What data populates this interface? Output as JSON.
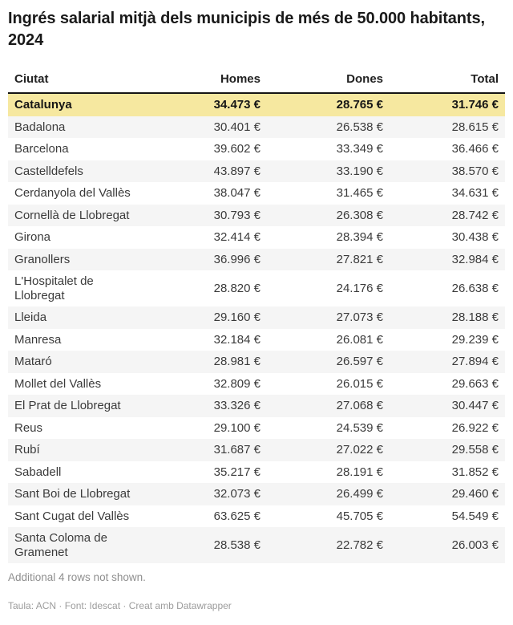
{
  "header": {
    "title": "Ingrés salarial mitjà dels municipis de més de 50.000 habitants, 2024"
  },
  "table": {
    "columns": {
      "ciutat": "Ciutat",
      "homes": "Homes",
      "dones": "Dones",
      "total": "Total"
    },
    "rows": [
      {
        "ciutat": "Catalunya",
        "homes": "34.473 €",
        "dones": "28.765 €",
        "total": "31.746 €",
        "highlight": true
      },
      {
        "ciutat": "Badalona",
        "homes": "30.401 €",
        "dones": "26.538 €",
        "total": "28.615 €"
      },
      {
        "ciutat": "Barcelona",
        "homes": "39.602 €",
        "dones": "33.349 €",
        "total": "36.466 €"
      },
      {
        "ciutat": "Castelldefels",
        "homes": "43.897 €",
        "dones": "33.190 €",
        "total": "38.570 €"
      },
      {
        "ciutat": "Cerdanyola del Vallès",
        "homes": "38.047 €",
        "dones": "31.465 €",
        "total": "34.631 €"
      },
      {
        "ciutat": "Cornellà de Llobregat",
        "homes": "30.793 €",
        "dones": "26.308 €",
        "total": "28.742 €"
      },
      {
        "ciutat": "Girona",
        "homes": "32.414 €",
        "dones": "28.394 €",
        "total": "30.438 €"
      },
      {
        "ciutat": "Granollers",
        "homes": "36.996 €",
        "dones": "27.821 €",
        "total": "32.984 €"
      },
      {
        "ciutat": "L'Hospitalet de Llobregat",
        "homes": "28.820 €",
        "dones": "24.176 €",
        "total": "26.638 €"
      },
      {
        "ciutat": "Lleida",
        "homes": "29.160 €",
        "dones": "27.073 €",
        "total": "28.188 €"
      },
      {
        "ciutat": "Manresa",
        "homes": "32.184 €",
        "dones": "26.081 €",
        "total": "29.239 €"
      },
      {
        "ciutat": "Mataró",
        "homes": "28.981 €",
        "dones": "26.597 €",
        "total": "27.894 €"
      },
      {
        "ciutat": "Mollet del Vallès",
        "homes": "32.809 €",
        "dones": "26.015 €",
        "total": "29.663 €"
      },
      {
        "ciutat": "El Prat de Llobregat",
        "homes": "33.326 €",
        "dones": "27.068 €",
        "total": "30.447 €"
      },
      {
        "ciutat": "Reus",
        "homes": "29.100 €",
        "dones": "24.539 €",
        "total": "26.922 €"
      },
      {
        "ciutat": "Rubí",
        "homes": "31.687 €",
        "dones": "27.022 €",
        "total": "29.558 €"
      },
      {
        "ciutat": "Sabadell",
        "homes": "35.217 €",
        "dones": "28.191 €",
        "total": "31.852 €"
      },
      {
        "ciutat": "Sant Boi de Llobregat",
        "homes": "32.073 €",
        "dones": "26.499 €",
        "total": "29.460 €"
      },
      {
        "ciutat": "Sant Cugat del Vallès",
        "homes": "63.625 €",
        "dones": "45.705 €",
        "total": "54.549 €"
      },
      {
        "ciutat": "Santa Coloma de Gramenet",
        "homes": "28.538 €",
        "dones": "22.782 €",
        "total": "26.003 €"
      }
    ]
  },
  "footer": {
    "rows_note": "Additional 4 rows not shown.",
    "credits_prefix": "Taula: ACN · Font: Idescat · ",
    "credits_link": "Creat amb Datawrapper"
  },
  "colors": {
    "highlight_row_bg": "#f6e8a0",
    "stripe_bg": "#f5f5f5",
    "header_border": "#151515",
    "muted_text": "#8f8f8f",
    "credits_text": "#9c9c9c"
  },
  "chart_data": {
    "type": "table",
    "title": "Ingrés salarial mitjà dels municipis de més de 50.000 habitants, 2024",
    "columns": [
      "Ciutat",
      "Homes",
      "Dones",
      "Total"
    ],
    "units": "EUR",
    "highlighted_row": "Catalunya",
    "rows": [
      [
        "Catalunya",
        34473,
        28765,
        31746
      ],
      [
        "Badalona",
        30401,
        26538,
        28615
      ],
      [
        "Barcelona",
        39602,
        33349,
        36466
      ],
      [
        "Castelldefels",
        43897,
        33190,
        38570
      ],
      [
        "Cerdanyola del Vallès",
        38047,
        31465,
        34631
      ],
      [
        "Cornellà de Llobregat",
        30793,
        26308,
        28742
      ],
      [
        "Girona",
        32414,
        28394,
        30438
      ],
      [
        "Granollers",
        36996,
        27821,
        32984
      ],
      [
        "L'Hospitalet de Llobregat",
        28820,
        24176,
        26638
      ],
      [
        "Lleida",
        29160,
        27073,
        28188
      ],
      [
        "Manresa",
        32184,
        26081,
        29239
      ],
      [
        "Mataró",
        28981,
        26597,
        27894
      ],
      [
        "Mollet del Vallès",
        32809,
        26015,
        29663
      ],
      [
        "El Prat de Llobregat",
        33326,
        27068,
        30447
      ],
      [
        "Reus",
        29100,
        24539,
        26922
      ],
      [
        "Rubí",
        31687,
        27022,
        29558
      ],
      [
        "Sabadell",
        35217,
        28191,
        31852
      ],
      [
        "Sant Boi de Llobregat",
        32073,
        26499,
        29460
      ],
      [
        "Sant Cugat del Vallès",
        63625,
        45705,
        54549
      ],
      [
        "Santa Coloma de Gramenet",
        28538,
        22782,
        26003
      ]
    ],
    "note": "Additional 4 rows not shown.",
    "source": "Taula: ACN · Font: Idescat · Creat amb Datawrapper"
  }
}
